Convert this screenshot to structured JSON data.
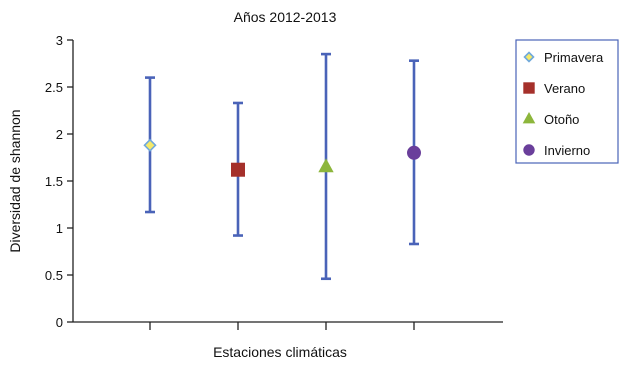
{
  "chart_data": {
    "type": "scatter",
    "title": "Años 2012-2013",
    "xlabel": "Estaciones climáticas",
    "ylabel": "Diversidad de shannon",
    "ylim": [
      0,
      3
    ],
    "yticks": [
      "0",
      "0.5",
      "1",
      "1.5",
      "2",
      "2.5",
      "3"
    ],
    "grid": false,
    "legend_position": "top-right",
    "error_bar_color": "#4a63b8",
    "series": [
      {
        "name": "Primavera",
        "x": 1,
        "y": 1.88,
        "low": 1.17,
        "high": 2.6,
        "marker": "diamond",
        "color": "#f4e96a",
        "stroke": "#6fa8dc"
      },
      {
        "name": "Verano",
        "x": 2,
        "y": 1.62,
        "low": 0.92,
        "high": 2.33,
        "marker": "square",
        "color": "#a5302b",
        "stroke": "#a5302b"
      },
      {
        "name": "Otoño",
        "x": 3,
        "y": 1.65,
        "low": 0.46,
        "high": 2.85,
        "marker": "triangle",
        "color": "#8db63c",
        "stroke": "#8db63c"
      },
      {
        "name": "Invierno",
        "x": 4,
        "y": 1.8,
        "low": 0.83,
        "high": 2.78,
        "marker": "circle",
        "color": "#6a3f9b",
        "stroke": "#6a3f9b"
      }
    ]
  }
}
